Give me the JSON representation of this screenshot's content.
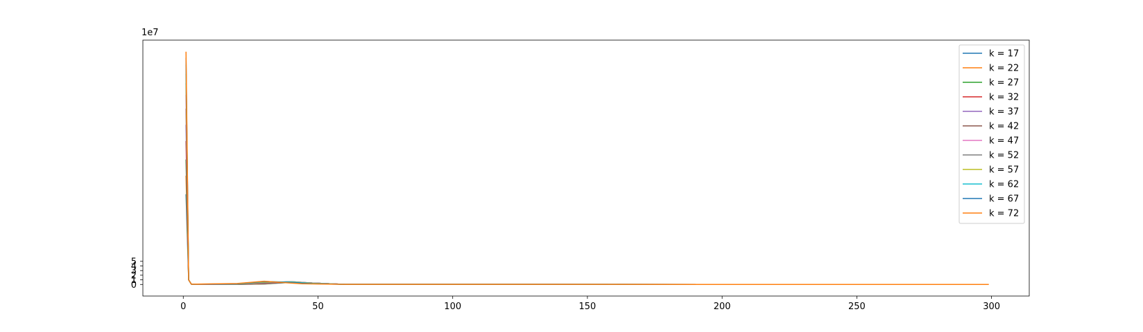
{
  "chart_data": {
    "type": "line",
    "title": "",
    "xlabel": "",
    "ylabel": "",
    "xlim": [
      -15,
      314
    ],
    "ylim": [
      -2.5,
      52.8
    ],
    "y_offset_label": "1e7",
    "y_scale_note": "values in units of 1e7",
    "xticks": [
      0,
      50,
      100,
      150,
      200,
      250,
      300
    ],
    "xtick_labels": [
      "0",
      "50",
      "100",
      "150",
      "200",
      "250",
      "300"
    ],
    "yticks": [
      0,
      1,
      2,
      3,
      4,
      5
    ],
    "ytick_labels": [
      "0",
      "1",
      "2",
      "3",
      "4",
      "5"
    ],
    "grid": false,
    "legend_position": "top-right",
    "series": [
      {
        "name": "k = 17",
        "color": "#1f77b4",
        "points": [
          [
            1,
            19.5
          ],
          [
            2,
            1.0
          ],
          [
            3,
            0.05
          ],
          [
            20,
            0.02
          ],
          [
            30,
            0.1
          ],
          [
            40,
            0.45
          ],
          [
            48,
            0.3
          ],
          [
            60,
            0.02
          ],
          [
            283,
            0.0
          ]
        ]
      },
      {
        "name": "k = 22",
        "color": "#ff7f0e",
        "points": [
          [
            1,
            23.5
          ],
          [
            2,
            1.0
          ],
          [
            3,
            0.05
          ],
          [
            20,
            0.02
          ],
          [
            30,
            0.12
          ],
          [
            40,
            0.5
          ],
          [
            48,
            0.3
          ],
          [
            60,
            0.02
          ],
          [
            284,
            0.0
          ]
        ]
      },
      {
        "name": "k = 27",
        "color": "#2ca02c",
        "points": [
          [
            1,
            27.0
          ],
          [
            2,
            1.0
          ],
          [
            3,
            0.05
          ],
          [
            20,
            0.03
          ],
          [
            30,
            0.15
          ],
          [
            40,
            0.5
          ],
          [
            48,
            0.3
          ],
          [
            60,
            0.02
          ],
          [
            286,
            0.0
          ]
        ]
      },
      {
        "name": "k = 32",
        "color": "#d62728",
        "points": [
          [
            1,
            31.0
          ],
          [
            2,
            1.0
          ],
          [
            3,
            0.05
          ],
          [
            20,
            0.03
          ],
          [
            30,
            0.2
          ],
          [
            40,
            0.55
          ],
          [
            48,
            0.3
          ],
          [
            60,
            0.02
          ],
          [
            288,
            0.0
          ]
        ]
      },
      {
        "name": "k = 37",
        "color": "#9467bd",
        "points": [
          [
            1,
            34.5
          ],
          [
            2,
            1.0
          ],
          [
            3,
            0.05
          ],
          [
            20,
            0.04
          ],
          [
            30,
            0.25
          ],
          [
            40,
            0.55
          ],
          [
            48,
            0.3
          ],
          [
            60,
            0.02
          ],
          [
            289,
            0.0
          ]
        ]
      },
      {
        "name": "k = 42",
        "color": "#8c564b",
        "points": [
          [
            1,
            38.0
          ],
          [
            2,
            1.0
          ],
          [
            3,
            0.05
          ],
          [
            20,
            0.04
          ],
          [
            30,
            0.3
          ],
          [
            40,
            0.6
          ],
          [
            48,
            0.3
          ],
          [
            60,
            0.02
          ],
          [
            291,
            0.0
          ]
        ]
      },
      {
        "name": "k = 47",
        "color": "#e377c2",
        "points": [
          [
            1,
            41.0
          ],
          [
            2,
            1.0
          ],
          [
            3,
            0.05
          ],
          [
            20,
            0.05
          ],
          [
            30,
            0.35
          ],
          [
            40,
            0.6
          ],
          [
            48,
            0.3
          ],
          [
            60,
            0.02
          ],
          [
            293,
            0.0
          ]
        ]
      },
      {
        "name": "k = 52",
        "color": "#7f7f7f",
        "points": [
          [
            1,
            43.5
          ],
          [
            2,
            1.0
          ],
          [
            3,
            0.05
          ],
          [
            20,
            0.05
          ],
          [
            30,
            0.4
          ],
          [
            40,
            0.6
          ],
          [
            48,
            0.3
          ],
          [
            60,
            0.02
          ],
          [
            294,
            0.0
          ]
        ]
      },
      {
        "name": "k = 57",
        "color": "#bcbd22",
        "points": [
          [
            1,
            45.5
          ],
          [
            2,
            1.0
          ],
          [
            3,
            0.05
          ],
          [
            20,
            0.1
          ],
          [
            30,
            0.5
          ],
          [
            40,
            0.55
          ],
          [
            48,
            0.25
          ],
          [
            60,
            0.02
          ],
          [
            296,
            0.0
          ]
        ]
      },
      {
        "name": "k = 62",
        "color": "#17becf",
        "points": [
          [
            1,
            47.5
          ],
          [
            2,
            1.0
          ],
          [
            3,
            0.05
          ],
          [
            20,
            0.12
          ],
          [
            30,
            0.6
          ],
          [
            40,
            0.5
          ],
          [
            48,
            0.2
          ],
          [
            60,
            0.02
          ],
          [
            297,
            0.0
          ]
        ]
      },
      {
        "name": "k = 67",
        "color": "#1f77b4",
        "points": [
          [
            1,
            49.0
          ],
          [
            2,
            1.0
          ],
          [
            3,
            0.05
          ],
          [
            20,
            0.15
          ],
          [
            30,
            0.65
          ],
          [
            38,
            0.45
          ],
          [
            48,
            0.15
          ],
          [
            60,
            0.02
          ],
          [
            298,
            0.0
          ]
        ]
      },
      {
        "name": "k = 72",
        "color": "#ff7f0e",
        "points": [
          [
            1,
            50.3
          ],
          [
            2,
            1.0
          ],
          [
            3,
            0.05
          ],
          [
            20,
            0.2
          ],
          [
            30,
            0.7
          ],
          [
            36,
            0.45
          ],
          [
            44,
            0.15
          ],
          [
            60,
            0.02
          ],
          [
            299,
            0.0
          ]
        ]
      }
    ]
  }
}
